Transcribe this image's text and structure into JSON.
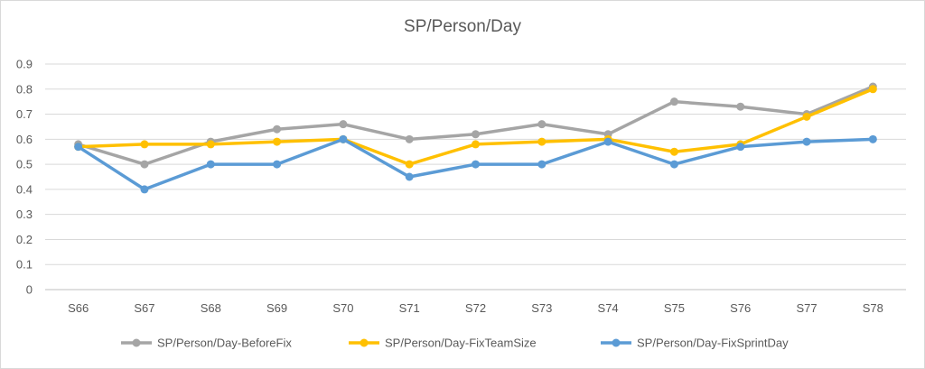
{
  "chart_data": {
    "type": "line",
    "title": "SP/Person/Day",
    "xlabel": "",
    "ylabel": "",
    "categories": [
      "S66",
      "S67",
      "S68",
      "S69",
      "S70",
      "S71",
      "S72",
      "S73",
      "S74",
      "S75",
      "S76",
      "S77",
      "S78"
    ],
    "ylim": [
      0,
      0.9
    ],
    "yticks": [
      "0",
      "0.1",
      "0.2",
      "0.3",
      "0.4",
      "0.5",
      "0.6",
      "0.7",
      "0.8",
      "0.9"
    ],
    "grid": true,
    "legend_position": "bottom",
    "series": [
      {
        "name": "SP/Person/Day-BeforeFix",
        "color": "#a5a5a5",
        "values": [
          0.58,
          0.5,
          0.59,
          0.64,
          0.66,
          0.6,
          0.62,
          0.66,
          0.62,
          0.75,
          0.73,
          0.7,
          0.81
        ]
      },
      {
        "name": "SP/Person/Day-FixTeamSize",
        "color": "#ffc000",
        "values": [
          0.57,
          0.58,
          0.58,
          0.59,
          0.6,
          0.5,
          0.58,
          0.59,
          0.6,
          0.55,
          0.58,
          0.69,
          0.8
        ]
      },
      {
        "name": "SP/Person/Day-FixSprintDay",
        "color": "#5b9bd5",
        "values": [
          0.57,
          0.4,
          0.5,
          0.5,
          0.6,
          0.45,
          0.5,
          0.5,
          0.59,
          0.5,
          0.57,
          0.59,
          0.6
        ]
      }
    ]
  }
}
